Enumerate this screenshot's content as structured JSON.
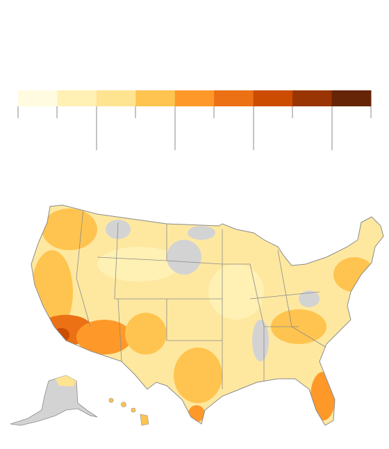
{
  "legend": {
    "colors": [
      "#fffbe0",
      "#fff0b4",
      "#fee391",
      "#fec44f",
      "#fe9929",
      "#ec7014",
      "#cc4c02",
      "#993404",
      "#662506"
    ]
  }
}
